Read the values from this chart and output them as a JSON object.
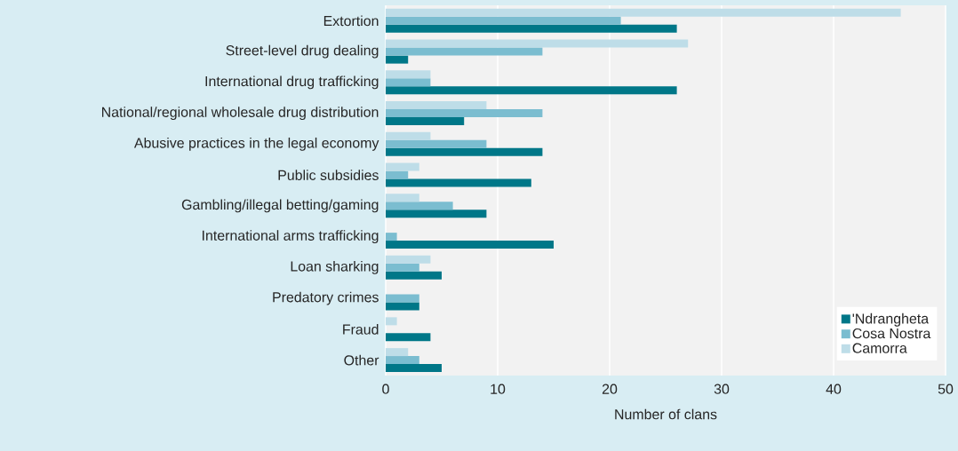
{
  "chart_data": {
    "type": "bar",
    "orientation": "horizontal",
    "categories": [
      "Extortion",
      "Street-level drug dealing",
      "International drug trafficking",
      "National/regional wholesale drug distribution",
      "Abusive practices in the legal economy",
      "Public subsidies",
      "Gambling/illegal betting/gaming",
      "International arms trafficking",
      "Loan sharking",
      "Predatory crimes",
      "Fraud",
      "Other"
    ],
    "series": [
      {
        "name": "'Ndrangheta",
        "color": "#007788",
        "values": [
          26,
          2,
          26,
          7,
          14,
          13,
          9,
          15,
          5,
          3,
          4,
          5
        ]
      },
      {
        "name": "Cosa Nostra",
        "color": "#7bbdd0",
        "values": [
          21,
          14,
          4,
          14,
          9,
          2,
          6,
          1,
          3,
          3,
          0,
          3
        ]
      },
      {
        "name": "Camorra",
        "color": "#bedde8",
        "values": [
          46,
          27,
          4,
          9,
          4,
          3,
          3,
          0,
          4,
          0,
          1,
          2
        ]
      }
    ],
    "xlim": [
      0,
      50
    ],
    "xticks": [
      0,
      10,
      20,
      30,
      40,
      50
    ],
    "xlabel": "Number of clans",
    "grid": "x",
    "legend": "bottom right"
  }
}
